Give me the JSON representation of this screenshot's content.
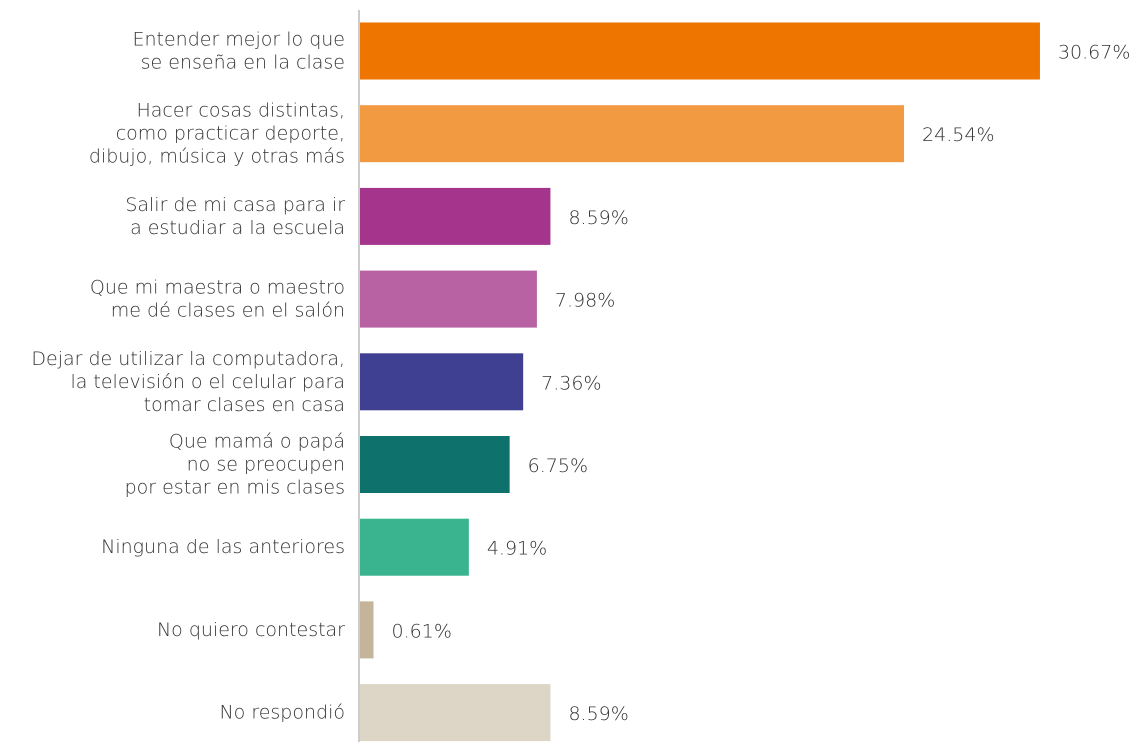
{
  "chart_data": {
    "type": "barh",
    "categories": [
      [
        "Entender mejor lo que",
        "se enseña en la clase"
      ],
      [
        "Hacer cosas distintas,",
        "como practicar deporte,",
        "dibujo, música y otras más"
      ],
      [
        "Salir de mi casa para ir",
        "a estudiar a la escuela"
      ],
      [
        "Que mi maestra o maestro",
        "me dé clases en el salón"
      ],
      [
        "Dejar de utilizar la computadora,",
        "la televisión o el celular para",
        "tomar clases en casa"
      ],
      [
        "Que mamá o papá",
        "no se preocupen",
        "por estar en mis clases"
      ],
      [
        "Ninguna de las anteriores"
      ],
      [
        "No quiero contestar"
      ],
      [
        "No respondió"
      ]
    ],
    "values": [
      30.67,
      24.54,
      8.59,
      7.98,
      7.36,
      6.75,
      4.91,
      0.61,
      8.59
    ],
    "value_labels": [
      "30.67%",
      "24.54%",
      "8.59%",
      "7.98%",
      "7.36%",
      "6.75%",
      "4.91%",
      "0.61%",
      "8.59%"
    ],
    "colors": [
      "#ee7500",
      "#f19a42",
      "#a5358c",
      "#b862a3",
      "#404092",
      "#0e716b",
      "#39b48e",
      "#c4b49a",
      "#ddd6c6"
    ]
  }
}
